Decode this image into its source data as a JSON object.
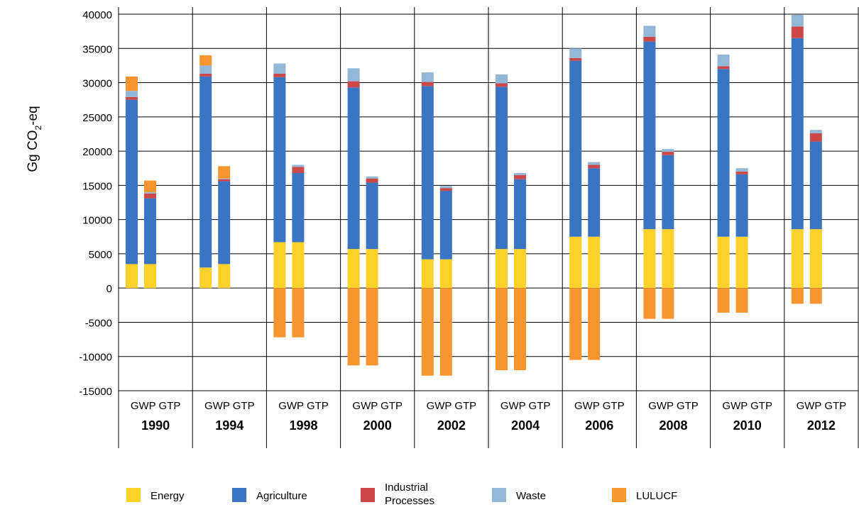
{
  "chart_data": {
    "type": "bar",
    "stacked": true,
    "ylabel": "Gg CO",
    "ylabel_sub": "2",
    "ylabel_tail": "-eq",
    "ylim": [
      -15000,
      40000
    ],
    "ytick_step": 5000,
    "grid": true,
    "legend_position": "bottom",
    "years": [
      "1990",
      "1994",
      "1998",
      "2000",
      "2002",
      "2004",
      "2006",
      "2008",
      "2010",
      "2012"
    ],
    "metrics": [
      "GWP",
      "GTP"
    ],
    "series": [
      {
        "name": "Energy",
        "color": "#FCD12A",
        "values": [
          [
            3500,
            3500
          ],
          [
            3000,
            3500
          ],
          [
            6700,
            6700
          ],
          [
            5700,
            5700
          ],
          [
            4200,
            4200
          ],
          [
            5700,
            5700
          ],
          [
            7500,
            7500
          ],
          [
            8600,
            8600
          ],
          [
            7500,
            7500
          ],
          [
            8600,
            8600
          ]
        ]
      },
      {
        "name": "Agriculture",
        "color": "#3A75C4",
        "values": [
          [
            24000,
            9600
          ],
          [
            27900,
            12100
          ],
          [
            24100,
            10100
          ],
          [
            23600,
            9700
          ],
          [
            25300,
            10000
          ],
          [
            23700,
            10200
          ],
          [
            25700,
            10000
          ],
          [
            27400,
            10800
          ],
          [
            24500,
            9100
          ],
          [
            27900,
            12800
          ]
        ]
      },
      {
        "name": "Industrial Processes",
        "color": "#CC4748",
        "values": [
          [
            400,
            700
          ],
          [
            400,
            300
          ],
          [
            500,
            900
          ],
          [
            900,
            600
          ],
          [
            600,
            400
          ],
          [
            500,
            600
          ],
          [
            400,
            500
          ],
          [
            700,
            500
          ],
          [
            400,
            400
          ],
          [
            1700,
            1200
          ]
        ]
      },
      {
        "name": "Waste",
        "color": "#93B7D6",
        "values": [
          [
            900,
            200
          ],
          [
            1200,
            100
          ],
          [
            1500,
            300
          ],
          [
            1900,
            300
          ],
          [
            1400,
            300
          ],
          [
            1300,
            300
          ],
          [
            1400,
            400
          ],
          [
            1600,
            400
          ],
          [
            1700,
            500
          ],
          [
            1700,
            500
          ]
        ]
      },
      {
        "name": "LULUCF",
        "color": "#F7962E",
        "values": [
          [
            2100,
            1700
          ],
          [
            1500,
            1800
          ],
          [
            -7200,
            -7200
          ],
          [
            -11300,
            -11300
          ],
          [
            -12800,
            -12800
          ],
          [
            -12000,
            -12000
          ],
          [
            -10500,
            -10500
          ],
          [
            -4500,
            -4500
          ],
          [
            -3600,
            -3600
          ],
          [
            -2300,
            -2300
          ]
        ]
      }
    ]
  }
}
